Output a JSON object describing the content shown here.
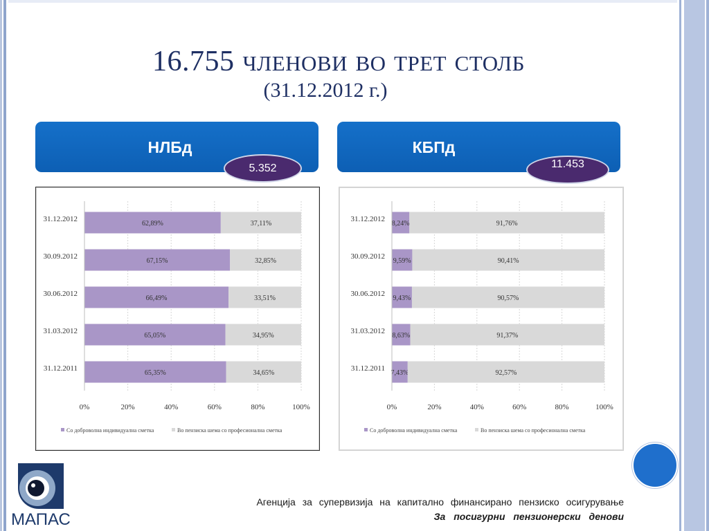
{
  "slide": {
    "title_number": "16.755",
    "title_rest": "членови во трет столб",
    "subtitle": "(31.12.2012 г.)"
  },
  "funds": [
    {
      "name": "НЛБд",
      "members": "5.352"
    },
    {
      "name": "КБПд",
      "members": "11.453"
    }
  ],
  "colors": {
    "accent": "#1e2f63",
    "fund_box": "#1570c9",
    "badge": "#4a2a6e",
    "series_voluntary": "#a996c7",
    "series_occupational": "#d9d9d9"
  },
  "footer": {
    "agency": "Агенција за супервизија на капитално финансирано пензиско осигурување",
    "motto": "За посигурни пензионерски денови",
    "logo_text": "МАПАС"
  },
  "chart_data": [
    {
      "type": "bar",
      "orientation": "horizontal",
      "stacked": "percent",
      "categories": [
        "31.12.2012",
        "30.09.2012",
        "30.06.2012",
        "31.03.2012",
        "31.12.2011"
      ],
      "series": [
        {
          "name": "Со доброволна индивидуална сметка",
          "values": [
            62.89,
            67.15,
            66.49,
            65.05,
            65.35
          ],
          "labels": [
            "62,89%",
            "67,15%",
            "66,49%",
            "65,05%",
            "65,35%"
          ]
        },
        {
          "name": "Во пензиска шема со професионална сметка",
          "values": [
            37.11,
            32.85,
            33.51,
            34.95,
            34.65
          ],
          "labels": [
            "37,11%",
            "32,85%",
            "33,51%",
            "34,95%",
            "34,65%"
          ]
        }
      ],
      "xticks": [
        "0%",
        "20%",
        "40%",
        "60%",
        "80%",
        "100%"
      ],
      "xlim": [
        0,
        100
      ],
      "grid": true,
      "legend": "bottom"
    },
    {
      "type": "bar",
      "orientation": "horizontal",
      "stacked": "percent",
      "categories": [
        "31.12.2012",
        "30.09.2012",
        "30.06.2012",
        "31.03.2012",
        "31.12.2011"
      ],
      "series": [
        {
          "name": "Со доброволна индивидуална сметка",
          "values": [
            8.24,
            9.59,
            9.43,
            8.63,
            7.43
          ],
          "labels": [
            "8,24%",
            "9,59%",
            "9,43%",
            "8,63%",
            "7,43%"
          ]
        },
        {
          "name": "Во пензиска шема со професионална сметка",
          "values": [
            91.76,
            90.41,
            90.57,
            91.37,
            92.57
          ],
          "labels": [
            "91,76%",
            "90,41%",
            "90,57%",
            "91,37%",
            "92,57%"
          ]
        }
      ],
      "xticks": [
        "0%",
        "20%",
        "40%",
        "60%",
        "80%",
        "100%"
      ],
      "xlim": [
        0,
        100
      ],
      "grid": true,
      "legend": "bottom"
    }
  ]
}
